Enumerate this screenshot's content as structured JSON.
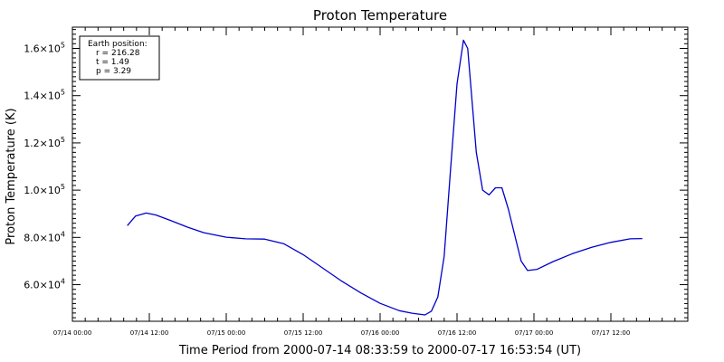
{
  "chart_data": {
    "type": "line",
    "title": "Proton Temperature",
    "xlabel": "Time Period from 2000-07-14 08:33:59 to 2000-07-17 16:53:54 (UT)",
    "ylabel": "Proton Temperature (K)",
    "ylim": [
      44500,
      169000
    ],
    "xlim": [
      "2000-07-14 00:00",
      "2000-07-18 00:00"
    ],
    "grid": false,
    "series_color": "#0000cc",
    "x_ticks": [
      {
        "at": "2000-07-14 00:00",
        "label": "07/14 00:00"
      },
      {
        "at": "2000-07-14 12:00",
        "label": "07/14 12:00"
      },
      {
        "at": "2000-07-15 00:00",
        "label": "07/15 00:00"
      },
      {
        "at": "2000-07-15 12:00",
        "label": "07/15 12:00"
      },
      {
        "at": "2000-07-16 00:00",
        "label": "07/16 00:00"
      },
      {
        "at": "2000-07-16 12:00",
        "label": "07/16 12:00"
      },
      {
        "at": "2000-07-17 00:00",
        "label": "07/17 00:00"
      },
      {
        "at": "2000-07-17 12:00",
        "label": "07/17 12:00"
      }
    ],
    "y_ticks": [
      {
        "value": 60000,
        "mantissa": "6.0",
        "exponent": "4"
      },
      {
        "value": 80000,
        "mantissa": "8.0",
        "exponent": "4"
      },
      {
        "value": 100000,
        "mantissa": "1.0",
        "exponent": "5"
      },
      {
        "value": 120000,
        "mantissa": "1.2",
        "exponent": "5"
      },
      {
        "value": 140000,
        "mantissa": "1.4",
        "exponent": "5"
      },
      {
        "value": 160000,
        "mantissa": "1.6",
        "exponent": "5"
      }
    ],
    "legend": {
      "title": "Earth position:",
      "lines": [
        "r = 216.28",
        "t = 1.49",
        "p = 3.29"
      ],
      "placement": "top-left"
    },
    "series": [
      {
        "x": [
          "2000-07-14 08:34",
          "2000-07-14 09:50",
          "2000-07-14 11:30",
          "2000-07-14 13:00",
          "2000-07-14 15:30",
          "2000-07-14 18:00",
          "2000-07-14 20:30",
          "2000-07-15 00:00",
          "2000-07-15 03:00",
          "2000-07-15 06:00",
          "2000-07-15 09:00",
          "2000-07-15 12:00",
          "2000-07-15 15:00",
          "2000-07-15 18:00",
          "2000-07-15 21:00",
          "2000-07-16 00:00",
          "2000-07-16 03:00",
          "2000-07-16 05:00",
          "2000-07-16 07:00",
          "2000-07-16 08:00",
          "2000-07-16 09:00",
          "2000-07-16 10:00",
          "2000-07-16 11:00",
          "2000-07-16 12:00",
          "2000-07-16 13:00",
          "2000-07-16 13:40",
          "2000-07-16 15:00",
          "2000-07-16 16:00",
          "2000-07-16 17:00",
          "2000-07-16 18:00",
          "2000-07-16 19:00",
          "2000-07-16 20:00",
          "2000-07-16 22:00",
          "2000-07-16 23:00",
          "2000-07-17 00:30",
          "2000-07-17 03:00",
          "2000-07-17 06:00",
          "2000-07-17 09:00",
          "2000-07-17 12:00",
          "2000-07-17 15:00",
          "2000-07-17 16:54"
        ],
        "y": [
          85000,
          89000,
          90300,
          89500,
          87000,
          84300,
          82000,
          80100,
          79400,
          79300,
          77300,
          72700,
          67100,
          61500,
          56500,
          52100,
          49000,
          47900,
          47200,
          48800,
          54800,
          72000,
          109000,
          145000,
          163500,
          160000,
          116000,
          100000,
          98000,
          101000,
          101000,
          92000,
          70000,
          66000,
          66500,
          69800,
          73100,
          75800,
          77900,
          79400,
          79500
        ]
      }
    ]
  }
}
